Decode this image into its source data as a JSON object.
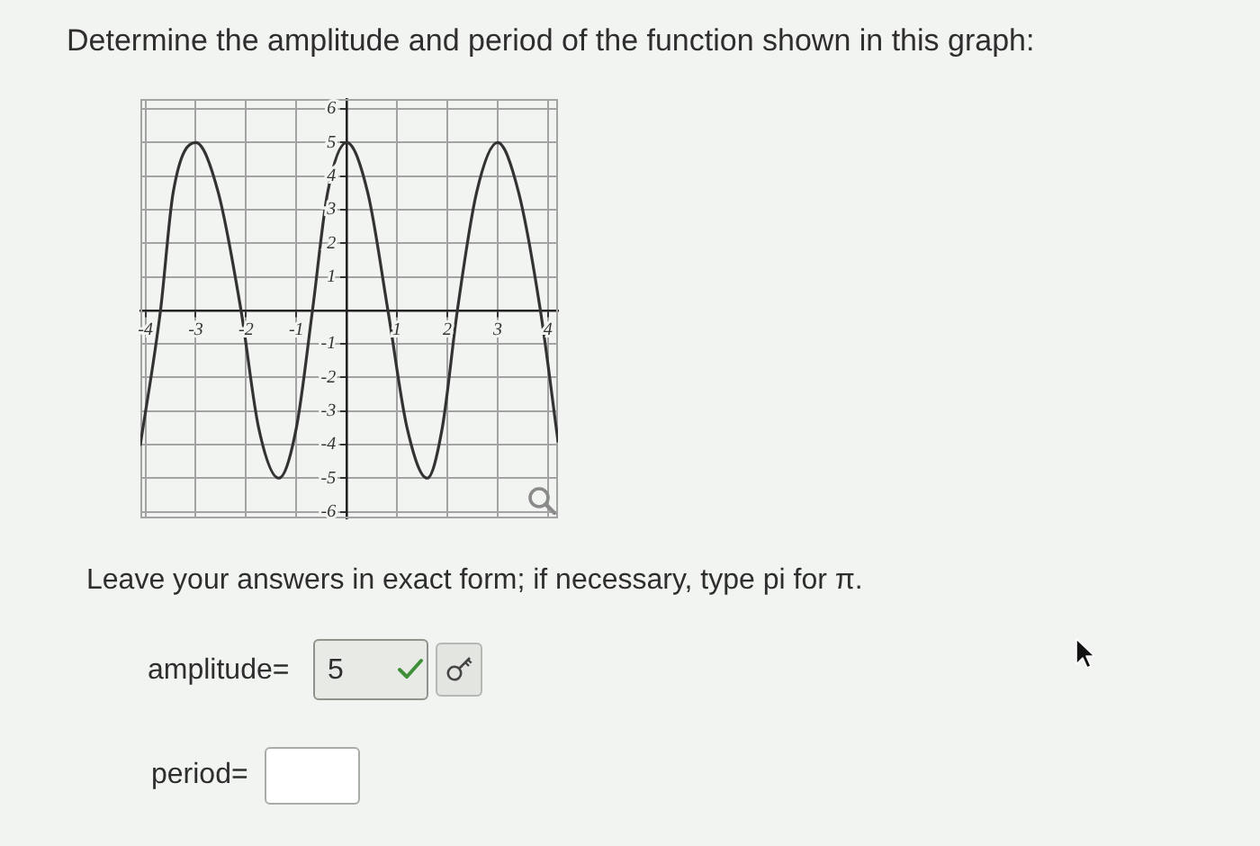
{
  "chart_data": {
    "type": "line",
    "title": "Determine the amplitude and period of the function shown in this graph:",
    "annotations": [
      "Leave your answers in exact form; if necessary, type pi for π.",
      "amplitude=",
      "5",
      "period="
    ],
    "x": [
      -4.1,
      -3.7,
      -3.45,
      -3.0,
      -2.55,
      -2.1,
      -1.75,
      -1.35,
      -1.0,
      -0.68,
      -0.38,
      0,
      0.42,
      0.82,
      1.2,
      1.6,
      1.9,
      2.2,
      2.58,
      3.0,
      3.42,
      3.85,
      4.2
    ],
    "values": [
      -4,
      0,
      3.5,
      5,
      3.5,
      0,
      -3.5,
      -5,
      -3.5,
      0,
      3.5,
      5,
      3.5,
      0,
      -3.5,
      -5,
      -3.5,
      0,
      3.5,
      5,
      3.5,
      0,
      -3.9
    ],
    "color": "#333333",
    "xlim": [
      -4.1,
      4.2
    ],
    "ylim": [
      -6.2,
      6.3
    ],
    "xticks": [
      -4,
      -3,
      -2,
      -1,
      {
        "value": 0,
        "label": null
      },
      1,
      2,
      3,
      4
    ],
    "yticks": [
      -6,
      -5,
      -4,
      -3,
      -2,
      -1,
      {
        "value": 0,
        "label": null
      },
      1,
      2,
      3,
      4,
      5,
      6
    ],
    "grid": true,
    "marker": "none",
    "line_style": "solid"
  }
}
